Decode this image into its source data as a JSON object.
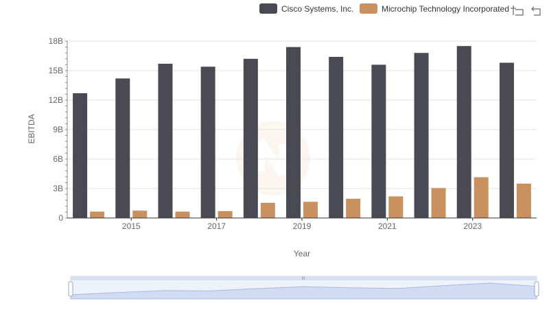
{
  "chart_data": {
    "type": "bar",
    "x": [
      2014,
      2015,
      2016,
      2017,
      2018,
      2019,
      2020,
      2021,
      2022,
      2023,
      2024
    ],
    "series": [
      {
        "name": "Cisco Systems, Inc.",
        "color": "#4a4a54",
        "values": [
          12.7,
          14.2,
          15.7,
          15.4,
          16.2,
          17.4,
          16.4,
          15.6,
          16.8,
          17.5,
          15.8
        ]
      },
      {
        "name": "Microchip Technology Incorporated",
        "color": "#c8915f",
        "values": [
          0.65,
          0.75,
          0.65,
          0.7,
          1.55,
          1.65,
          1.95,
          2.2,
          3.05,
          4.15,
          3.5
        ]
      }
    ],
    "xlabel": "Year",
    "ylabel": "EBITDA",
    "ylim": [
      0,
      18
    ],
    "ytick_values": [
      0,
      3,
      6,
      9,
      12,
      15,
      18
    ],
    "ytick_labels": [
      "0",
      "3B",
      "6B",
      "9B",
      "12B",
      "15B",
      "18B"
    ],
    "xtick_labels": [
      "2015",
      "2017",
      "2019",
      "2021",
      "2023"
    ],
    "grid": true,
    "legend_position": "top-right"
  },
  "toolbox": {
    "zoom_icon": "zoom-icon",
    "restore_icon": "restore-icon"
  },
  "slider": {
    "handle_label": "III"
  }
}
